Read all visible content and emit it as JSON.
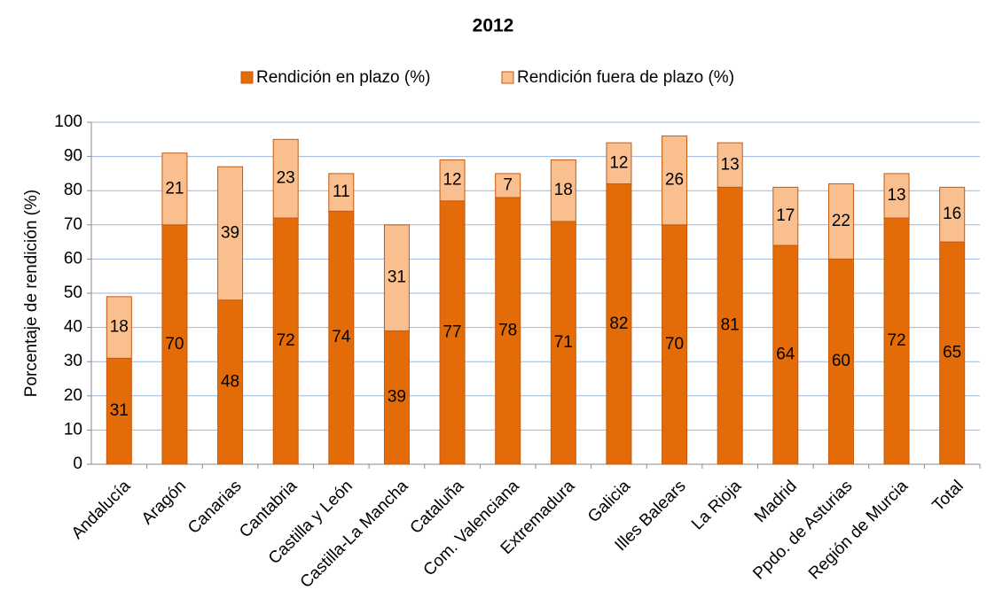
{
  "chart_data": {
    "type": "stacked_bar",
    "title": "2012",
    "y_label": "Porcentaje de rendición (%)",
    "categories": [
      "Andalucía",
      "Aragón",
      "Canarias",
      "Cantabria",
      "Castilla y León",
      "Castilla-La Mancha",
      "Cataluña",
      "Com. Valenciana",
      "Extremadura",
      "Galicia",
      "Illes Balears",
      "La Rioja",
      "Madrid",
      "Ppdo. de Asturias",
      "Región de Murcia",
      "Total"
    ],
    "series": [
      {
        "name": "Rendición en plazo (%)",
        "color": "#e36c09",
        "values": [
          31,
          70,
          48,
          72,
          74,
          39,
          77,
          78,
          71,
          82,
          70,
          81,
          64,
          60,
          72,
          65
        ]
      },
      {
        "name": "Rendición fuera de plazo (%)",
        "color": "#fabf8f",
        "values": [
          18,
          21,
          39,
          23,
          11,
          31,
          12,
          7,
          18,
          12,
          26,
          13,
          17,
          22,
          13,
          16
        ]
      }
    ],
    "ylim": [
      0,
      100
    ],
    "yticks": [
      0,
      10,
      20,
      30,
      40,
      50,
      60,
      70,
      80,
      90,
      100
    ],
    "grid": true,
    "legend": "top"
  }
}
